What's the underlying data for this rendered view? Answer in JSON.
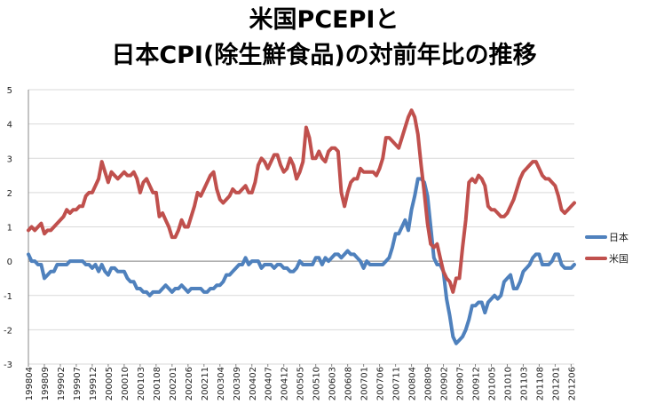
{
  "chart_data": {
    "type": "line",
    "title_line1": "米国PCEPIと",
    "title_line2": "日本CPI(除生鮮食品)の対前年比の推移",
    "xlabel": "",
    "ylabel": "",
    "ylim": [
      -3,
      5
    ],
    "yticks": [
      "5",
      "4",
      "3",
      "2",
      "1",
      "0",
      "-1",
      "-2",
      "-3"
    ],
    "x_tick_labels": [
      "199804",
      "199809",
      "199902",
      "199907",
      "199912",
      "200005",
      "200010",
      "200103",
      "200108",
      "200201",
      "200206",
      "200211",
      "200304",
      "200309",
      "200402",
      "200407",
      "200412",
      "200505",
      "200510",
      "200603",
      "200608",
      "200701",
      "200706",
      "200711",
      "200804",
      "200809",
      "200902",
      "200907",
      "200912",
      "201005",
      "201010",
      "201103",
      "201108",
      "201201",
      "201206"
    ],
    "start_month": "199804",
    "legend_position": "right",
    "colors": {
      "japan": "#4F81BD",
      "us": "#C0504D",
      "grid": "#d9d9d9",
      "axis": "#888888"
    },
    "series": [
      {
        "name": "日本",
        "key": "japan",
        "values": [
          0.2,
          0.0,
          0.0,
          -0.1,
          -0.1,
          -0.5,
          -0.4,
          -0.3,
          -0.3,
          -0.1,
          -0.1,
          -0.1,
          -0.1,
          0.0,
          0.0,
          0.0,
          0.0,
          0.0,
          -0.1,
          -0.1,
          -0.2,
          -0.1,
          -0.3,
          -0.1,
          -0.3,
          -0.4,
          -0.2,
          -0.2,
          -0.3,
          -0.3,
          -0.3,
          -0.5,
          -0.6,
          -0.6,
          -0.8,
          -0.8,
          -0.9,
          -0.9,
          -1.0,
          -0.9,
          -0.9,
          -0.9,
          -0.8,
          -0.7,
          -0.8,
          -0.9,
          -0.8,
          -0.8,
          -0.7,
          -0.8,
          -0.9,
          -0.8,
          -0.8,
          -0.8,
          -0.8,
          -0.9,
          -0.9,
          -0.8,
          -0.8,
          -0.7,
          -0.7,
          -0.6,
          -0.4,
          -0.4,
          -0.3,
          -0.2,
          -0.1,
          -0.1,
          0.1,
          -0.1,
          0.0,
          0.0,
          0.0,
          -0.2,
          -0.1,
          -0.1,
          -0.1,
          -0.2,
          -0.1,
          -0.1,
          -0.2,
          -0.2,
          -0.3,
          -0.3,
          -0.2,
          0.0,
          -0.1,
          -0.1,
          -0.1,
          -0.1,
          0.1,
          0.1,
          -0.1,
          0.1,
          0.0,
          0.1,
          0.2,
          0.2,
          0.1,
          0.2,
          0.3,
          0.2,
          0.2,
          0.1,
          0.0,
          -0.2,
          0.0,
          -0.1,
          -0.1,
          -0.1,
          -0.1,
          -0.1,
          0.0,
          0.1,
          0.4,
          0.8,
          0.8,
          1.0,
          1.2,
          0.9,
          1.5,
          1.9,
          2.4,
          2.4,
          2.3,
          1.9,
          1.0,
          0.1,
          -0.1,
          -0.1,
          -0.3,
          -1.1,
          -1.6,
          -2.2,
          -2.4,
          -2.3,
          -2.2,
          -2.0,
          -1.7,
          -1.3,
          -1.3,
          -1.2,
          -1.2,
          -1.5,
          -1.2,
          -1.1,
          -1.0,
          -1.1,
          -1.0,
          -0.6,
          -0.5,
          -0.4,
          -0.8,
          -0.8,
          -0.6,
          -0.3,
          -0.2,
          -0.1,
          0.1,
          0.2,
          0.2,
          -0.1,
          -0.1,
          -0.1,
          0.0,
          0.2,
          0.2,
          -0.1,
          -0.2,
          -0.2,
          -0.2,
          -0.1
        ]
      },
      {
        "name": "米国",
        "key": "us",
        "values": [
          0.9,
          1.0,
          0.9,
          1.0,
          1.1,
          0.8,
          0.9,
          0.9,
          1.0,
          1.1,
          1.2,
          1.3,
          1.5,
          1.4,
          1.5,
          1.5,
          1.6,
          1.6,
          1.9,
          2.0,
          2.0,
          2.2,
          2.4,
          2.9,
          2.6,
          2.3,
          2.6,
          2.5,
          2.4,
          2.5,
          2.6,
          2.5,
          2.5,
          2.6,
          2.4,
          2.0,
          2.3,
          2.4,
          2.2,
          2.0,
          2.0,
          1.3,
          1.4,
          1.2,
          1.0,
          0.7,
          0.7,
          0.9,
          1.2,
          1.0,
          1.0,
          1.3,
          1.6,
          2.0,
          1.9,
          2.1,
          2.3,
          2.5,
          2.6,
          2.1,
          1.8,
          1.7,
          1.8,
          1.9,
          2.1,
          2.0,
          2.0,
          2.1,
          2.2,
          2.0,
          2.0,
          2.3,
          2.8,
          3.0,
          2.9,
          2.7,
          2.9,
          3.1,
          3.1,
          2.8,
          2.6,
          2.7,
          3.0,
          2.8,
          2.4,
          2.6,
          2.9,
          3.9,
          3.6,
          3.0,
          3.0,
          3.2,
          3.0,
          2.9,
          3.2,
          3.3,
          3.3,
          3.2,
          2.0,
          1.6,
          2.0,
          2.3,
          2.4,
          2.4,
          2.7,
          2.6,
          2.6,
          2.6,
          2.6,
          2.5,
          2.7,
          3.0,
          3.6,
          3.6,
          3.5,
          3.4,
          3.3,
          3.6,
          3.9,
          4.2,
          4.4,
          4.2,
          3.7,
          2.8,
          2.0,
          1.1,
          0.5,
          0.4,
          0.5,
          0.1,
          -0.3,
          -0.5,
          -0.6,
          -0.9,
          -0.5,
          -0.5,
          0.4,
          1.2,
          2.3,
          2.4,
          2.3,
          2.5,
          2.4,
          2.2,
          1.6,
          1.5,
          1.5,
          1.4,
          1.3,
          1.3,
          1.4,
          1.6,
          1.8,
          2.1,
          2.4,
          2.6,
          2.7,
          2.8,
          2.9,
          2.9,
          2.7,
          2.5,
          2.4,
          2.4,
          2.3,
          2.2,
          1.9,
          1.5,
          1.4,
          1.5,
          1.6,
          1.7
        ]
      }
    ]
  }
}
